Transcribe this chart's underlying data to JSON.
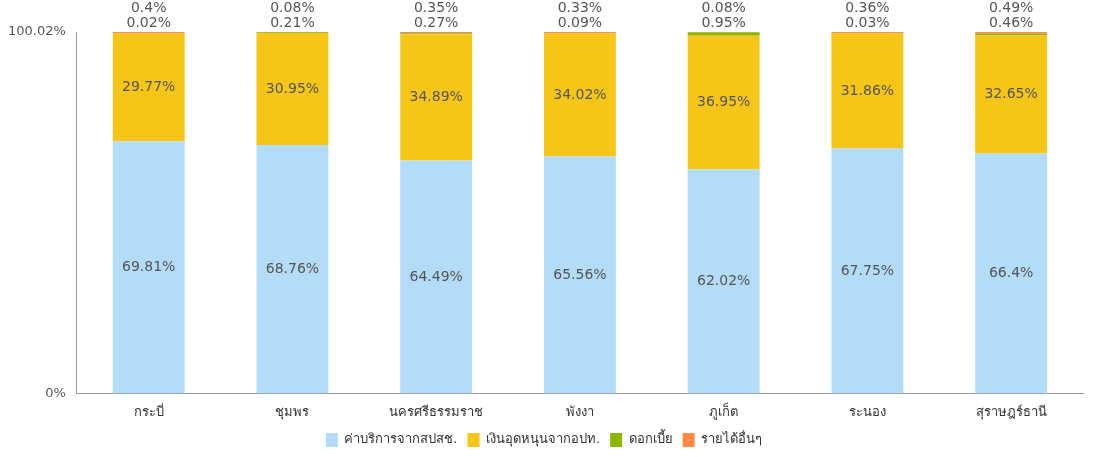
{
  "chart_data": {
    "type": "bar",
    "stacked": true,
    "categories": [
      "กระบี่",
      "ชุมพร",
      "นครศรีธรรมราช",
      "พังงา",
      "ภูเก็ต",
      "ระนอง",
      "สุราษฎร์ธานี"
    ],
    "series": [
      {
        "name": "ค่าบริการจากสปสช.",
        "color": "#b3dcf8",
        "values": [
          69.81,
          68.76,
          64.49,
          65.56,
          62.02,
          67.75,
          66.4
        ],
        "value_labels": [
          "69.81%",
          "68.76%",
          "64.49%",
          "65.56%",
          "62.02%",
          "67.75%",
          "66.4%"
        ]
      },
      {
        "name": "เงินอุดหนุนจากอปท.",
        "color": "#f5c518",
        "values": [
          29.77,
          30.95,
          34.89,
          34.02,
          36.95,
          31.86,
          32.65
        ],
        "value_labels": [
          "29.77%",
          "30.95%",
          "34.89%",
          "34.02%",
          "36.95%",
          "31.86%",
          "32.65%"
        ]
      },
      {
        "name": "ดอกเบี้ย",
        "color": "#8db600",
        "values": [
          0.02,
          0.21,
          0.27,
          0.09,
          0.95,
          0.03,
          0.46
        ],
        "value_labels": [
          "0.02%",
          "0.21%",
          "0.27%",
          "0.09%",
          "0.95%",
          "0.03%",
          "0.46%"
        ]
      },
      {
        "name": "รายได้อื่นๆ",
        "color": "#ff8c42",
        "values": [
          0.4,
          0.08,
          0.35,
          0.33,
          0.08,
          0.36,
          0.49
        ],
        "value_labels": [
          "0.4%",
          "0.08%",
          "0.35%",
          "0.33%",
          "0.08%",
          "0.36%",
          "0.49%"
        ]
      }
    ],
    "ylim": [
      0,
      100.02
    ],
    "yticks": [
      {
        "value": 0,
        "label": "0%"
      },
      {
        "value": 100.02,
        "label": "100.02%"
      }
    ],
    "legend": "bottom"
  }
}
